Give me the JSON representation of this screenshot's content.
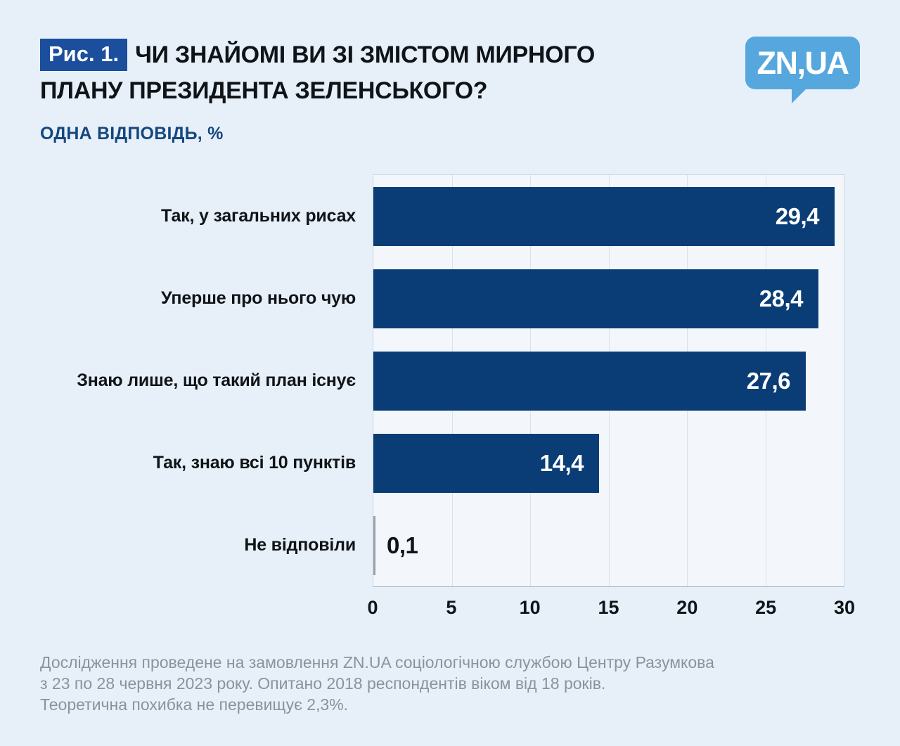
{
  "header": {
    "figure_label": "Рис. 1.",
    "title_line1": "ЧИ ЗНАЙОМІ ВИ ЗІ ЗМІСТОМ МИРНОГО",
    "title_line2": "ПЛАНУ ПРЕЗИДЕНТА ЗЕЛЕНСЬКОГО?",
    "subtitle": "ОДНА ВІДПОВІДЬ, %"
  },
  "logo": {
    "text": "ZN,UA"
  },
  "chart_data": {
    "type": "bar",
    "orientation": "horizontal",
    "title": "Чи знайомі ви зі змістом мирного плану президента Зеленського?",
    "subtitle": "Одна відповідь, %",
    "unit": "%",
    "categories": [
      "Так, у загальних рисах",
      "Уперше про нього чую",
      "Знаю лише, що такий план існує",
      "Так, знаю всі 10 пунктів",
      "Не відповіли"
    ],
    "values": [
      29.4,
      28.4,
      27.6,
      14.4,
      0.1
    ],
    "value_labels": [
      "29,4",
      "28,4",
      "27,6",
      "14,4",
      "0,1"
    ],
    "xlim": [
      0,
      30
    ],
    "x_ticks": [
      0,
      5,
      10,
      15,
      20,
      25,
      30
    ],
    "x_tick_labels": [
      "0",
      "5",
      "10",
      "15",
      "20",
      "25",
      "30"
    ],
    "grid": "vertical",
    "legend": "none",
    "bar_color": "#0a3d75"
  },
  "footer": {
    "lines": [
      "Дослідження проведене на замовлення ZN.UA соціологічною службою Центру Разумкова",
      "з 23 по 28 червня 2023 року. Опитано 2018 респондентів віком від 18 років.",
      "Теоретична похибка не перевищує 2,3%."
    ]
  },
  "colors": {
    "page_bg": "#e7f0f8",
    "plot_bg": "#f3f7fb",
    "bar": "#0a3d75",
    "tiny_bar": "#98a1ab",
    "badge_bg": "#1b4e9c",
    "subtitle": "#15477f",
    "logo_bg": "#56a7de",
    "footer_text": "#8b929b",
    "text": "#101418"
  }
}
